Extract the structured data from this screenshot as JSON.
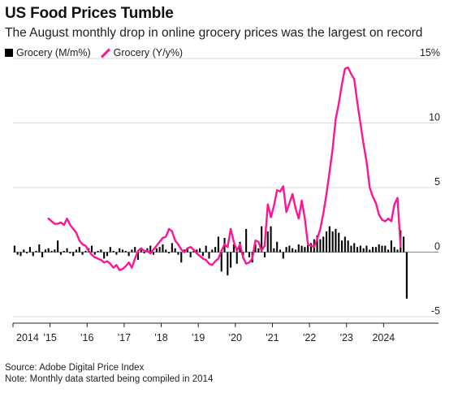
{
  "title": "US Food Prices Tumble",
  "subtitle": "The August monthly drop in online grocery prices was the largest on record",
  "legend": {
    "bar_label": "Grocery (M/m%)",
    "line_label": "Grocery (Y/y%)"
  },
  "footer": {
    "source": "Source: Adobe Digital Price Index",
    "note": "Note: Monthly data started being compiled in 2014"
  },
  "colors": {
    "bar": "#000000",
    "line": "#ff1493",
    "grid": "#d9d9d9"
  },
  "chart_data": {
    "type": "bar+line",
    "x_ticks": [
      "2014",
      "'15",
      "'16",
      "'17",
      "'18",
      "'19",
      "'20",
      "'21",
      "'22",
      "'23",
      "2024"
    ],
    "y_ticks": [
      "15%",
      "10",
      "5",
      "0",
      "-5"
    ],
    "y_tick_values": [
      15,
      10,
      5,
      0,
      -5
    ],
    "ylim": [
      -5.5,
      15
    ],
    "xlim": [
      "2014-01",
      "2024-12"
    ],
    "grid": true,
    "legend_position": "top-left",
    "series": [
      {
        "name": "Grocery (M/m%)",
        "kind": "bar",
        "start": "2014-01",
        "values": [
          0.5,
          -0.2,
          -0.3,
          0.2,
          -0.1,
          0.4,
          -0.3,
          0.1,
          0.6,
          -0.4,
          0.2,
          0.3,
          0.1,
          0.2,
          0.9,
          -0.2,
          0.1,
          0.3,
          -0.1,
          -0.3,
          0.2,
          0.4,
          -0.2,
          0.1,
          0.3,
          0.5,
          -0.2,
          0.1,
          0.2,
          -0.5,
          -0.3,
          0.4,
          0.1,
          -0.2,
          0.3,
          0.2,
          0.1,
          -0.3,
          0.2,
          0.4,
          -0.6,
          0.2,
          -0.1,
          0.3,
          0.5,
          -0.2,
          0.3,
          0.4,
          0.6,
          0.2,
          -0.1,
          0.7,
          0.3,
          -0.2,
          -0.8,
          0.2,
          0.3,
          -0.4,
          0.1,
          0.2,
          0.3,
          -0.3,
          0.5,
          -0.5,
          0.2,
          0.4,
          1.2,
          -1.5,
          1.1,
          -1.8,
          -1.2,
          0.6,
          -0.9,
          0.8,
          -0.5,
          1.8,
          -0.4,
          -0.8,
          0.6,
          0.3,
          2.0,
          -0.4,
          1.6,
          2.0,
          0.3,
          0.8,
          0.2,
          -0.5,
          0.4,
          0.5,
          0.3,
          0.2,
          0.6,
          0.5,
          0.4,
          0.8,
          0.7,
          1.0,
          1.3,
          1.0,
          1.2,
          1.6,
          2.0,
          1.6,
          1.8,
          1.5,
          0.9,
          1.2,
          0.9,
          0.5,
          0.7,
          0.4,
          0.5,
          0.3,
          0.5,
          0.2,
          0.4,
          0.4,
          0.6,
          0.5,
          0.5,
          0.2,
          0.9,
          0.4,
          0.2,
          1.7,
          1.2,
          -3.6
        ]
      },
      {
        "name": "Grocery (Y/y%)",
        "kind": "line",
        "start": "2014-12",
        "values": [
          2.6,
          2.4,
          2.2,
          2.2,
          2.3,
          2.1,
          2.6,
          2.1,
          1.8,
          1.5,
          0.9,
          0.6,
          0.5,
          0.1,
          -0.2,
          -0.4,
          -0.5,
          -0.6,
          -0.8,
          -0.7,
          -0.9,
          -1.2,
          -1.0,
          -1.4,
          -1.3,
          -1.1,
          -0.8,
          -1.2,
          -0.5,
          0.1,
          0.3,
          0.1,
          0.1,
          -0.1,
          0.2,
          0.5,
          0.8,
          1.1,
          1.2,
          1.8,
          1.6,
          0.9,
          0.6,
          0.2,
          0.0,
          0.3,
          0.4,
          0.2,
          -0.1,
          -0.3,
          -0.5,
          -0.6,
          -0.9,
          -1.0,
          -0.7,
          -0.5,
          0.1,
          0.6,
          0.4,
          1.8,
          0.8,
          0.1,
          0.6,
          -0.4,
          -0.9,
          -0.8,
          -0.5,
          0.9,
          0.8,
          0.1,
          0.5,
          3.7,
          2.7,
          3.6,
          4.8,
          4.7,
          5.1,
          3.1,
          3.8,
          4.5,
          3.4,
          2.6,
          4.0,
          2.6,
          0.6,
          0.5,
          0.4,
          1.0,
          1.8,
          3.0,
          4.5,
          6.2,
          8.0,
          10.3,
          11.5,
          13.0,
          14.2,
          14.3,
          13.8,
          13.4,
          11.6,
          10.0,
          8.4,
          7.0,
          5.0,
          4.3,
          3.8,
          2.9,
          2.5,
          2.4,
          2.6,
          2.4,
          3.7,
          4.2,
          0.4
        ]
      }
    ]
  }
}
